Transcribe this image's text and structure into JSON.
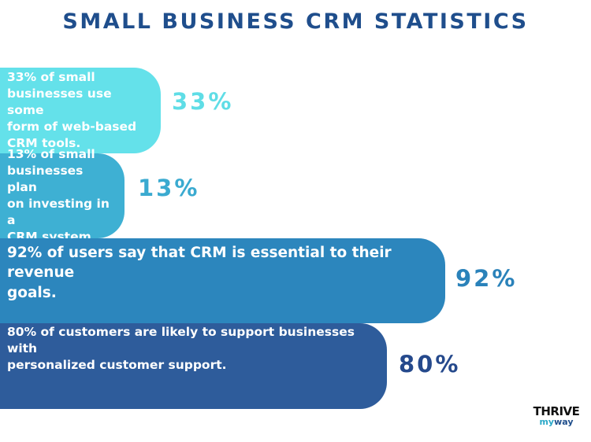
{
  "chart_data": {
    "type": "bar",
    "title": "SMALL BUSINESS CRM STATISTICS",
    "unit": "%",
    "orientation": "horizontal",
    "bars": [
      {
        "value": 33,
        "value_label": "33%",
        "text": [
          "33% of small",
          "businesses use some",
          "form of web-based",
          "CRM tools."
        ],
        "color": "#64e1ea",
        "label_color": "#5fdde6"
      },
      {
        "value": 13,
        "value_label": "13%",
        "text": [
          "13% of small",
          "businesses plan",
          "on investing in a",
          "CRM system."
        ],
        "color": "#3eb0d3",
        "label_color": "#3aaad0"
      },
      {
        "value": 92,
        "value_label": "92%",
        "text": [
          "92% of users say that CRM is essential to their revenue",
          "goals."
        ],
        "color": "#2c86bd",
        "label_color": "#2a82ba"
      },
      {
        "value": 80,
        "value_label": "80%",
        "text": [
          "80% of customers are likely to support businesses with",
          "personalized customer support."
        ],
        "color": "#2e5c9b",
        "label_color": "#25498c"
      }
    ]
  },
  "logo": {
    "top": "THRIVE",
    "my": "my",
    "way": "way"
  },
  "colors": {
    "title": "#1f4e8c",
    "background": "#ffffff"
  }
}
